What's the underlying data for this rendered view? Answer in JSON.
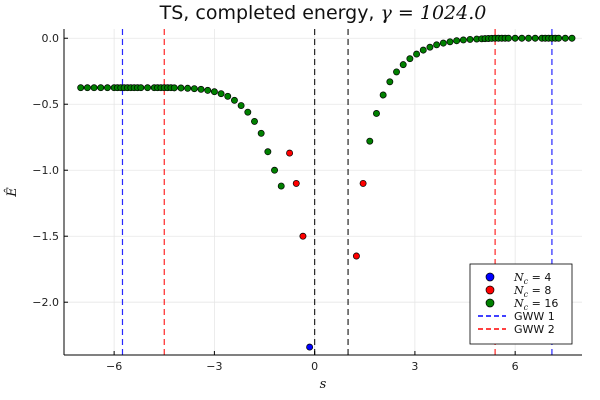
{
  "chart_data": {
    "type": "scatter",
    "title_prefix": "TS, completed energy, ",
    "title_math": "γ = 1024.0",
    "xlabel": "s",
    "ylabel": "Ê",
    "xlim": [
      -7.5,
      8.0
    ],
    "ylim": [
      -2.4,
      0.07
    ],
    "xticks": [
      -6,
      -3,
      0,
      3,
      6
    ],
    "xtick_labels": [
      "−6",
      "−3",
      "0",
      "3",
      "6"
    ],
    "yticks": [
      -2.0,
      -1.5,
      -1.0,
      -0.5,
      0.0
    ],
    "ytick_labels": [
      "−2.0",
      "−1.5",
      "−1.0",
      "−0.5",
      "0.0"
    ],
    "grid": true,
    "legend_position": "bottom-right",
    "series": [
      {
        "name_prefix": "N",
        "name_sub": "c",
        "name_suffix": " = 4",
        "color": "#0000ff",
        "x": [
          -0.15
        ],
        "y": [
          -2.34
        ]
      },
      {
        "name_prefix": "N",
        "name_sub": "c",
        "name_suffix": " = 8",
        "color": "#ff0000",
        "x": [
          -0.75,
          -0.55,
          -0.35,
          1.25,
          1.45
        ],
        "y": [
          -0.87,
          -1.1,
          -1.5,
          -1.65,
          -1.1
        ]
      },
      {
        "name_prefix": "N",
        "name_sub": "c",
        "name_suffix": " = 16",
        "color": "#008000",
        "x": [
          -7.0,
          -6.8,
          -6.6,
          -6.4,
          -6.2,
          -6.0,
          -5.9,
          -5.8,
          -5.7,
          -5.6,
          -5.5,
          -5.4,
          -5.3,
          -5.2,
          -5.0,
          -4.8,
          -4.7,
          -4.6,
          -4.5,
          -4.4,
          -4.3,
          -4.2,
          -4.0,
          -3.8,
          -3.6,
          -3.4,
          -3.2,
          -3.0,
          -2.8,
          -2.6,
          -2.4,
          -2.2,
          -2.0,
          -1.8,
          -1.6,
          -1.4,
          -1.2,
          -1.0,
          1.65,
          1.85,
          2.05,
          2.25,
          2.45,
          2.65,
          2.85,
          3.05,
          3.25,
          3.45,
          3.65,
          3.85,
          4.05,
          4.25,
          4.45,
          4.65,
          4.85,
          5.0,
          5.1,
          5.2,
          5.3,
          5.4,
          5.5,
          5.6,
          5.7,
          5.8,
          6.0,
          6.2,
          6.4,
          6.6,
          6.8,
          6.9,
          7.0,
          7.1,
          7.2,
          7.3,
          7.5,
          7.7
        ],
        "y": [
          -0.375,
          -0.375,
          -0.375,
          -0.375,
          -0.375,
          -0.375,
          -0.375,
          -0.375,
          -0.375,
          -0.375,
          -0.375,
          -0.375,
          -0.375,
          -0.375,
          -0.375,
          -0.375,
          -0.375,
          -0.375,
          -0.375,
          -0.375,
          -0.375,
          -0.376,
          -0.377,
          -0.379,
          -0.382,
          -0.387,
          -0.395,
          -0.405,
          -0.42,
          -0.44,
          -0.47,
          -0.51,
          -0.56,
          -0.63,
          -0.72,
          -0.86,
          -1.0,
          -1.12,
          -0.78,
          -0.57,
          -0.43,
          -0.33,
          -0.255,
          -0.2,
          -0.155,
          -0.12,
          -0.09,
          -0.068,
          -0.05,
          -0.037,
          -0.027,
          -0.019,
          -0.013,
          -0.009,
          -0.006,
          -0.004,
          -0.003,
          -0.002,
          -0.001,
          0.0,
          0.0,
          0.0,
          0.0,
          0.0,
          0.0,
          0.0,
          0.0,
          0.0,
          0.0,
          0.0,
          0.0,
          0.0,
          0.0,
          0.0,
          0.0,
          0.0
        ]
      }
    ],
    "vlines": [
      {
        "x": -5.75,
        "color": "#0000ff",
        "legend": "GWW 1"
      },
      {
        "x": 7.1,
        "color": "#0000ff",
        "legend": null
      },
      {
        "x": -4.5,
        "color": "#ff0000",
        "legend": "GWW 2"
      },
      {
        "x": 5.4,
        "color": "#ff0000",
        "legend": null
      },
      {
        "x": 0.0,
        "color": "#000000",
        "legend": null
      },
      {
        "x": 1.0,
        "color": "#000000",
        "legend": null
      }
    ],
    "line_legend": [
      {
        "name": "GWW 1",
        "color": "#0000ff"
      },
      {
        "name": "GWW 2",
        "color": "#ff0000"
      }
    ]
  }
}
